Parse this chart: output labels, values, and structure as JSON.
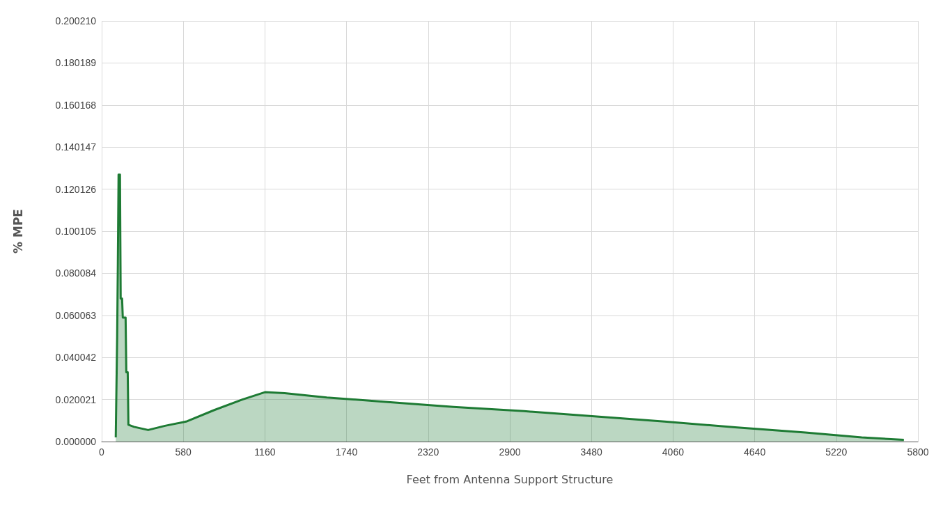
{
  "chart_data": {
    "type": "area",
    "xlabel": "Feet from Antenna Support Structure",
    "ylabel": "% MPE",
    "xlim": [
      0,
      5800
    ],
    "xticks": [
      0,
      580,
      1160,
      1740,
      2320,
      2900,
      3480,
      4060,
      4640,
      5220,
      5800
    ],
    "ylim": [
      0,
      0.20021
    ],
    "yticks": [
      {
        "value": 0,
        "label": "0.000000"
      },
      {
        "value": 0.020021,
        "label": "0.020021"
      },
      {
        "value": 0.040042,
        "label": "0.040042"
      },
      {
        "value": 0.060063,
        "label": "0.060063"
      },
      {
        "value": 0.080084,
        "label": "0.080084"
      },
      {
        "value": 0.100105,
        "label": "0.100105"
      },
      {
        "value": 0.120126,
        "label": "0.120126"
      },
      {
        "value": 0.140147,
        "label": "0.140147"
      },
      {
        "value": 0.160168,
        "label": "0.160168"
      },
      {
        "value": 0.180189,
        "label": "0.180189"
      },
      {
        "value": 0.20021,
        "label": "0.200210"
      }
    ],
    "grid": true,
    "x": [
      100,
      110,
      115,
      120,
      130,
      135,
      145,
      150,
      170,
      175,
      185,
      190,
      230,
      330,
      450,
      600,
      800,
      1000,
      1160,
      1300,
      1600,
      2000,
      2500,
      3000,
      3500,
      4000,
      4500,
      5000,
      5400,
      5700
    ],
    "series": [
      {
        "color": "#1e7b34",
        "values": [
          0.002,
          0.05,
          0.085,
          0.127,
          0.127,
          0.068,
          0.068,
          0.059,
          0.059,
          0.033,
          0.033,
          0.008,
          0.007,
          0.0055,
          0.0075,
          0.0095,
          0.015,
          0.02,
          0.0235,
          0.023,
          0.021,
          0.019,
          0.0165,
          0.0145,
          0.012,
          0.0095,
          0.0068,
          0.0043,
          0.002,
          0.0008
        ]
      }
    ]
  }
}
